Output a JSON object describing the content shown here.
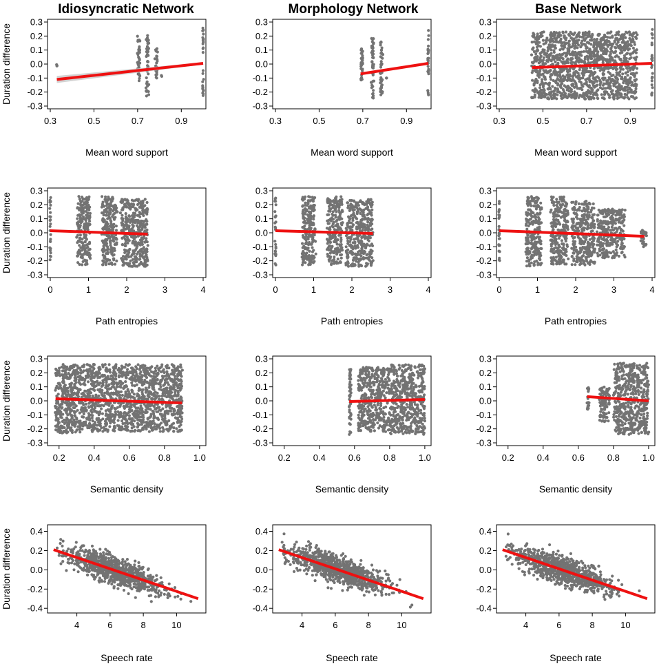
{
  "columns": [
    "Idiosyncratic Network",
    "Morphology Network",
    "Base Network"
  ],
  "ylabel": "Duration difference",
  "chart_data": [
    {
      "type": "scatter",
      "title": "Idiosyncratic Network",
      "xlabel": "Mean word support",
      "ylabel": "Duration difference",
      "xlim": [
        0.3,
        1.0
      ],
      "ylim": [
        -0.3,
        0.3
      ],
      "xticks": [
        "0.3",
        "0.5",
        "0.7",
        "0.9"
      ],
      "yticks": [
        "0.3",
        "0.2",
        "0.1",
        "0.0",
        "-0.1",
        "-0.2",
        "-0.3"
      ],
      "clusters": [
        [
          0.33,
          0.33,
          -0.05,
          0.0
        ],
        [
          0.7,
          0.71,
          -0.12,
          0.2
        ],
        [
          0.74,
          0.75,
          -0.23,
          0.21
        ],
        [
          0.78,
          0.79,
          -0.1,
          0.12
        ],
        [
          0.81,
          0.81,
          -0.09,
          -0.08
        ],
        [
          1.0,
          1.0,
          -0.24,
          0.26
        ]
      ],
      "fit": {
        "x": [
          0.33,
          1.0
        ],
        "y": [
          -0.11,
          0.005
        ]
      },
      "band": true
    },
    {
      "type": "scatter",
      "title": "Morphology Network",
      "xlabel": "Mean word support",
      "ylabel": "Duration difference",
      "xlim": [
        0.3,
        1.0
      ],
      "ylim": [
        -0.3,
        0.3
      ],
      "xticks": [
        "0.3",
        "0.5",
        "0.7",
        "0.9"
      ],
      "yticks": [
        "0.3",
        "0.2",
        "0.1",
        "0.0",
        "-0.1",
        "-0.2",
        "-0.3"
      ],
      "clusters": [
        [
          0.69,
          0.7,
          -0.12,
          0.14
        ],
        [
          0.74,
          0.75,
          -0.26,
          0.19
        ],
        [
          0.78,
          0.79,
          -0.22,
          0.17
        ],
        [
          0.81,
          0.81,
          -0.1,
          -0.1
        ],
        [
          1.0,
          1.0,
          -0.24,
          0.26
        ]
      ],
      "fit": {
        "x": [
          0.69,
          1.0
        ],
        "y": [
          -0.07,
          0.005
        ]
      },
      "band": false
    },
    {
      "type": "scatter",
      "title": "Base Network",
      "xlabel": "Mean word support",
      "ylabel": "Duration difference",
      "xlim": [
        0.3,
        1.0
      ],
      "ylim": [
        -0.3,
        0.3
      ],
      "xticks": [
        "0.3",
        "0.5",
        "0.7",
        "0.9"
      ],
      "yticks": [
        "0.3",
        "0.2",
        "0.1",
        "0.0",
        "-0.1",
        "-0.2",
        "-0.3"
      ],
      "clusters": [
        [
          0.45,
          0.93,
          -0.25,
          0.23
        ],
        [
          1.0,
          1.0,
          -0.24,
          0.26
        ]
      ],
      "fit": {
        "x": [
          0.45,
          1.0
        ],
        "y": [
          -0.025,
          0.005
        ]
      },
      "band": false
    },
    {
      "type": "scatter",
      "title": "",
      "xlabel": "Path entropies",
      "ylabel": "Duration difference",
      "xlim": [
        0,
        4
      ],
      "ylim": [
        -0.3,
        0.3
      ],
      "xticks": [
        "0",
        "1",
        "2",
        "3",
        "4"
      ],
      "yticks": [
        "0.3",
        "0.2",
        "0.1",
        "0.0",
        "-0.1",
        "-0.2",
        "-0.3"
      ],
      "clusters": [
        [
          0,
          0,
          -0.23,
          0.26
        ],
        [
          0.7,
          1.05,
          -0.23,
          0.26
        ],
        [
          1.35,
          1.75,
          -0.23,
          0.26
        ],
        [
          1.85,
          2.55,
          -0.24,
          0.24
        ]
      ],
      "fit": {
        "x": [
          0,
          2.55
        ],
        "y": [
          0.015,
          -0.01
        ]
      },
      "band": false
    },
    {
      "type": "scatter",
      "title": "",
      "xlabel": "Path entropies",
      "ylabel": "Duration difference",
      "xlim": [
        0,
        4
      ],
      "ylim": [
        -0.3,
        0.3
      ],
      "xticks": [
        "0",
        "1",
        "2",
        "3",
        "4"
      ],
      "yticks": [
        "0.3",
        "0.2",
        "0.1",
        "0.0",
        "-0.1",
        "-0.2",
        "-0.3"
      ],
      "clusters": [
        [
          0,
          0,
          -0.23,
          0.26
        ],
        [
          0.7,
          1.05,
          -0.23,
          0.26
        ],
        [
          1.35,
          1.75,
          -0.23,
          0.26
        ],
        [
          1.85,
          2.55,
          -0.24,
          0.24
        ]
      ],
      "fit": {
        "x": [
          0,
          2.55
        ],
        "y": [
          0.015,
          -0.005
        ]
      },
      "band": false
    },
    {
      "type": "scatter",
      "title": "",
      "xlabel": "Path entropies",
      "ylabel": "Duration difference",
      "xlim": [
        0,
        4
      ],
      "ylim": [
        -0.3,
        0.3
      ],
      "xticks": [
        "0",
        "1",
        "2",
        "3",
        "4"
      ],
      "yticks": [
        "0.3",
        "0.2",
        "0.1",
        "0.0",
        "-0.1",
        "-0.2",
        "-0.3"
      ],
      "clusters": [
        [
          0,
          0,
          -0.23,
          0.26
        ],
        [
          0.7,
          1.1,
          -0.24,
          0.26
        ],
        [
          1.35,
          1.8,
          -0.23,
          0.26
        ],
        [
          1.9,
          2.5,
          -0.23,
          0.23
        ],
        [
          2.55,
          3.3,
          -0.18,
          0.17
        ],
        [
          3.7,
          3.85,
          -0.1,
          0.02
        ]
      ],
      "fit": {
        "x": [
          0,
          3.8
        ],
        "y": [
          0.015,
          -0.025
        ]
      },
      "band": false
    },
    {
      "type": "scatter",
      "title": "",
      "xlabel": "Semantic density",
      "ylabel": "Duration difference",
      "xlim": [
        0.15,
        1.02
      ],
      "ylim": [
        -0.3,
        0.3
      ],
      "xticks": [
        "0.2",
        "0.4",
        "0.6",
        "0.8",
        "1.0"
      ],
      "yticks": [
        "0.3",
        "0.2",
        "0.1",
        "0.0",
        "-0.1",
        "-0.2",
        "-0.3"
      ],
      "clusters": [
        [
          0.18,
          0.4,
          -0.23,
          0.26
        ],
        [
          0.4,
          0.9,
          -0.22,
          0.26
        ]
      ],
      "fit": {
        "x": [
          0.18,
          0.9
        ],
        "y": [
          0.015,
          -0.015
        ]
      },
      "band": false
    },
    {
      "type": "scatter",
      "title": "",
      "xlabel": "Semantic density",
      "ylabel": "Duration difference",
      "xlim": [
        0.15,
        1.02
      ],
      "ylim": [
        -0.3,
        0.3
      ],
      "xticks": [
        "0.2",
        "0.4",
        "0.6",
        "0.8",
        "1.0"
      ],
      "yticks": [
        "0.3",
        "0.2",
        "0.1",
        "0.0",
        "-0.1",
        "-0.2",
        "-0.3"
      ],
      "clusters": [
        [
          0.57,
          0.58,
          -0.25,
          0.24
        ],
        [
          0.62,
          0.8,
          -0.22,
          0.24
        ],
        [
          0.8,
          1.0,
          -0.24,
          0.26
        ]
      ],
      "fit": {
        "x": [
          0.57,
          1.0
        ],
        "y": [
          -0.005,
          0.01
        ]
      },
      "band": false
    },
    {
      "type": "scatter",
      "title": "",
      "xlabel": "Semantic density",
      "ylabel": "Duration difference",
      "xlim": [
        0.15,
        1.02
      ],
      "ylim": [
        -0.3,
        0.3
      ],
      "xticks": [
        "0.2",
        "0.4",
        "0.6",
        "0.8",
        "1.0"
      ],
      "yticks": [
        "0.3",
        "0.2",
        "0.1",
        "0.0",
        "-0.1",
        "-0.2",
        "-0.3"
      ],
      "clusters": [
        [
          0.65,
          0.66,
          -0.07,
          0.1
        ],
        [
          0.72,
          0.78,
          -0.15,
          0.1
        ],
        [
          0.8,
          1.0,
          -0.24,
          0.27
        ]
      ],
      "fit": {
        "x": [
          0.65,
          1.0
        ],
        "y": [
          0.03,
          0.0
        ]
      },
      "band": false
    },
    {
      "type": "scatter",
      "title": "",
      "xlabel": "Speech rate",
      "ylabel": "Duration difference",
      "xlim": [
        2.4,
        11.6
      ],
      "ylim": [
        -0.42,
        0.44
      ],
      "xticks": [
        "4",
        "6",
        "8",
        "10"
      ],
      "yticks": [
        "0.4",
        "0.2",
        "0.0",
        "-0.2",
        "-0.4"
      ],
      "clusters": [],
      "fit": {
        "x": [
          2.6,
          11.3
        ],
        "y": [
          0.21,
          -0.3
        ]
      },
      "band": false
    },
    {
      "type": "scatter",
      "title": "",
      "xlabel": "Speech rate",
      "ylabel": "Duration difference",
      "xlim": [
        2.4,
        11.6
      ],
      "ylim": [
        -0.42,
        0.44
      ],
      "xticks": [
        "4",
        "6",
        "8",
        "10"
      ],
      "yticks": [
        "0.4",
        "0.2",
        "0.0",
        "-0.2",
        "-0.4"
      ],
      "clusters": [],
      "fit": {
        "x": [
          2.6,
          11.3
        ],
        "y": [
          0.21,
          -0.3
        ]
      },
      "band": false
    },
    {
      "type": "scatter",
      "title": "",
      "xlabel": "Speech rate",
      "ylabel": "Duration difference",
      "xlim": [
        2.4,
        11.6
      ],
      "ylim": [
        -0.42,
        0.44
      ],
      "xticks": [
        "4",
        "6",
        "8",
        "10"
      ],
      "yticks": [
        "0.4",
        "0.2",
        "0.0",
        "-0.2",
        "-0.4"
      ],
      "clusters": [],
      "fit": {
        "x": [
          2.6,
          11.3
        ],
        "y": [
          0.21,
          -0.3
        ]
      },
      "band": false
    }
  ]
}
